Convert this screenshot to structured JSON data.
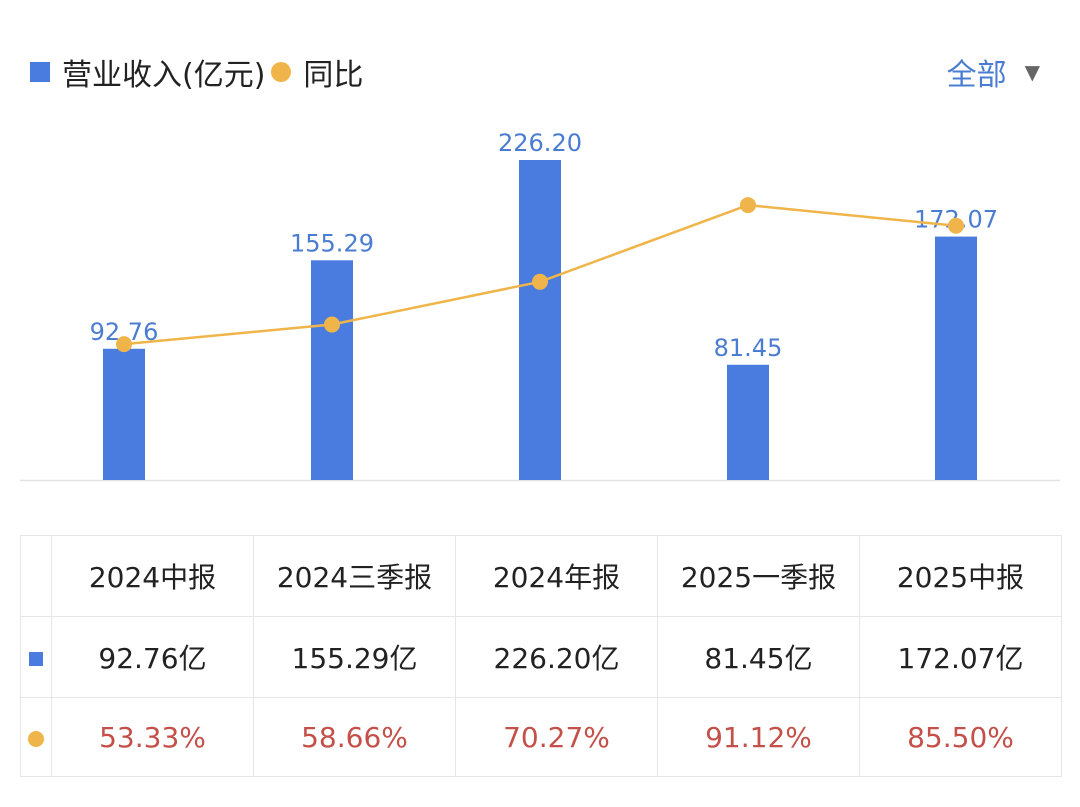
{
  "colors": {
    "bar": "#4a7cdf",
    "line": "#f0b54a",
    "label": "#4a7cd1",
    "yoy_text": "#c4504a"
  },
  "legend": {
    "revenue_label": "营业收入(亿元)",
    "yoy_label": "同比"
  },
  "filter": {
    "label": "全部",
    "caret": "▼"
  },
  "chart_data": {
    "type": "bar",
    "categories": [
      "2024中报",
      "2024三季报",
      "2024年报",
      "2025一季报",
      "2025中报"
    ],
    "series": [
      {
        "name": "营业收入(亿元)",
        "type": "bar",
        "values": [
          92.76,
          155.29,
          226.2,
          81.45,
          172.07
        ],
        "labels": [
          "92.76",
          "155.29",
          "226.20",
          "81.45",
          "172.07"
        ]
      },
      {
        "name": "同比",
        "type": "line",
        "values": [
          53.33,
          58.66,
          70.27,
          91.12,
          85.5
        ]
      }
    ],
    "ylim": [
      0,
      226.2
    ],
    "y2lim": [
      30,
      92.5
    ],
    "title": "",
    "legend_position": "top-left"
  },
  "table": {
    "headers": [
      "2024中报",
      "2024三季报",
      "2024年报",
      "2025一季报",
      "2025中报"
    ],
    "revenue": [
      "92.76亿",
      "155.29亿",
      "226.20亿",
      "81.45亿",
      "172.07亿"
    ],
    "yoy": [
      "53.33%",
      "58.66%",
      "70.27%",
      "91.12%",
      "85.50%"
    ]
  }
}
